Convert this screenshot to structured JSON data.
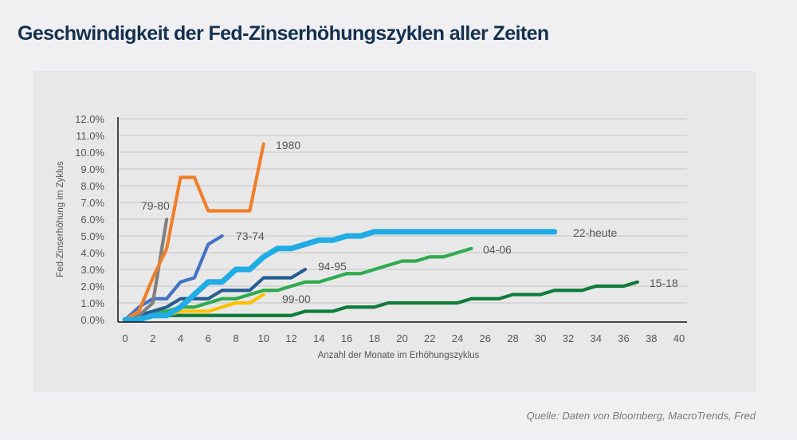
{
  "header": {
    "title": "Geschwindigkeit der Fed-Zinserhöhungszyklen aller Zeiten"
  },
  "footer": {
    "source": "Quelle: Daten von Bloomberg, MacroTrends, Fred"
  },
  "chart_data": {
    "type": "line",
    "title": "Geschwindigkeit der Fed-Zinserhöhungszyklen aller Zeiten",
    "xlabel": "Anzahl der Monate im Erhöhungszyklus",
    "ylabel": "Fed-Zinserhöhung im Zyklus",
    "xlim": [
      0,
      40
    ],
    "ylim": [
      0,
      12
    ],
    "x_ticks": [
      "0",
      "2",
      "4",
      "6",
      "8",
      "10",
      "12",
      "14",
      "16",
      "18",
      "20",
      "22",
      "24",
      "26",
      "28",
      "30",
      "32",
      "34",
      "36",
      "38",
      "40"
    ],
    "y_ticks": [
      "0.0%",
      "1.0%",
      "2.0%",
      "3.0%",
      "4.0%",
      "5.0%",
      "6.0%",
      "7.0%",
      "8.0%",
      "9.0%",
      "10.0%",
      "11.0%",
      "12.0%"
    ],
    "grid": "horizontal",
    "legend": "inline-labels",
    "series": [
      {
        "name": "1980",
        "color": "#f07f2a",
        "values": [
          0,
          0.5,
          2.5,
          4.25,
          8.5,
          8.5,
          6.5,
          6.5,
          6.5,
          6.5,
          10.5
        ]
      },
      {
        "name": "79-80",
        "color": "#808080",
        "values": [
          0,
          0.25,
          1.0,
          6.0
        ]
      },
      {
        "name": "73-74",
        "color": "#4472c4",
        "values": [
          0,
          0.75,
          1.25,
          1.25,
          2.25,
          2.5,
          4.5,
          5.0
        ]
      },
      {
        "name": "94-95",
        "color": "#255e91",
        "values": [
          0,
          0.25,
          0.5,
          0.75,
          1.25,
          1.25,
          1.25,
          1.75,
          1.75,
          1.75,
          2.5,
          2.5,
          2.5,
          3.0
        ]
      },
      {
        "name": "99-00",
        "color": "#ffc000",
        "values": [
          0,
          0.25,
          0.25,
          0.25,
          0.5,
          0.5,
          0.5,
          0.75,
          1.0,
          1.0,
          1.5
        ]
      },
      {
        "name": "04-06",
        "color": "#2eab4f",
        "values": [
          0,
          0.25,
          0.5,
          0.5,
          0.75,
          0.75,
          1.0,
          1.25,
          1.25,
          1.5,
          1.75,
          1.75,
          2.0,
          2.25,
          2.25,
          2.5,
          2.75,
          2.75,
          3.0,
          3.25,
          3.5,
          3.5,
          3.75,
          3.75,
          4.0,
          4.25
        ]
      },
      {
        "name": "15-18",
        "color": "#0f7c3a",
        "values": [
          0,
          0.25,
          0.25,
          0.25,
          0.25,
          0.25,
          0.25,
          0.25,
          0.25,
          0.25,
          0.25,
          0.25,
          0.25,
          0.5,
          0.5,
          0.5,
          0.75,
          0.75,
          0.75,
          1.0,
          1.0,
          1.0,
          1.0,
          1.0,
          1.0,
          1.25,
          1.25,
          1.25,
          1.5,
          1.5,
          1.5,
          1.75,
          1.75,
          1.75,
          2.0,
          2.0,
          2.0,
          2.25
        ]
      },
      {
        "name": "22-heute",
        "color": "#20ace4",
        "values": [
          0,
          0,
          0.25,
          0.25,
          0.75,
          1.5,
          2.25,
          2.25,
          3.0,
          3.0,
          3.75,
          4.25,
          4.25,
          4.5,
          4.75,
          4.75,
          5.0,
          5.0,
          5.25,
          5.25,
          5.25,
          5.25,
          5.25,
          5.25,
          5.25,
          5.25,
          5.25,
          5.25,
          5.25,
          5.25,
          5.25,
          5.25
        ]
      }
    ]
  }
}
